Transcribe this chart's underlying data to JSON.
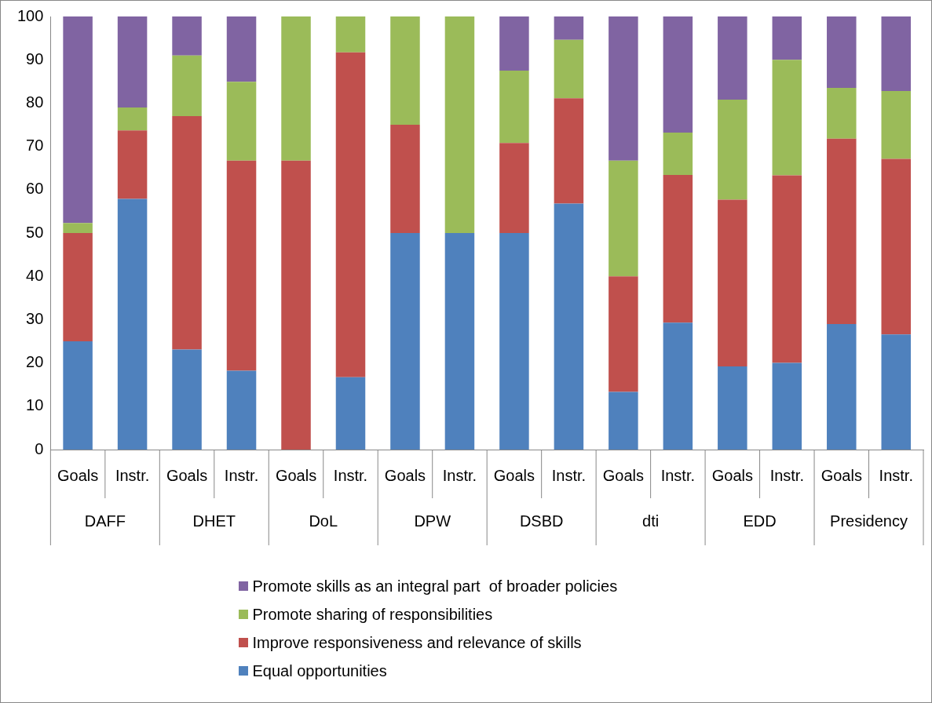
{
  "chart_data": {
    "type": "bar",
    "stacked": true,
    "categories": [
      "Goals",
      "Instr.",
      "Goals",
      "Instr.",
      "Goals",
      "Instr.",
      "Goals",
      "Instr.",
      "Goals",
      "Instr.",
      "Goals",
      "Instr.",
      "Goals",
      "Instr.",
      "Goals",
      "Instr."
    ],
    "annotations": [
      "DAFF",
      "DHET",
      "DoL",
      "DPW",
      "DSBD",
      "dti",
      "EDD",
      "Presidency"
    ],
    "series": [
      {
        "name": "Equal opportunities",
        "color": "#4f81bd",
        "values": [
          25,
          57.9,
          23.1,
          18.2,
          0,
          16.7,
          50,
          50,
          50,
          56.8,
          13.3,
          29.3,
          19.2,
          20,
          29,
          26.6
        ]
      },
      {
        "name": "Improve responsiveness and relevance of skills",
        "color": "#c0504d",
        "values": [
          25,
          15.8,
          53.9,
          48.5,
          66.7,
          75,
          25,
          0,
          20.8,
          24.3,
          26.7,
          34.1,
          38.5,
          43.3,
          42.8,
          40.5
        ]
      },
      {
        "name": "Promote sharing of responsibilities",
        "color": "#9bbb59",
        "values": [
          2.3,
          5.3,
          14,
          18.2,
          33.3,
          8.3,
          25,
          50,
          16.7,
          13.5,
          26.7,
          9.8,
          23.1,
          26.7,
          11.7,
          15.7
        ]
      },
      {
        "name": "Promote skills as an integral part  of broader policies",
        "color": "#8064a2",
        "values": [
          47.7,
          21,
          9,
          15.1,
          0,
          0,
          0,
          0,
          12.5,
          5.4,
          33.3,
          26.8,
          19.2,
          10,
          16.5,
          17.2
        ]
      }
    ],
    "ylim": [
      0,
      100
    ],
    "yticks": [
      0,
      10,
      20,
      30,
      40,
      50,
      60,
      70,
      80,
      90,
      100
    ],
    "legend": "bottom"
  }
}
